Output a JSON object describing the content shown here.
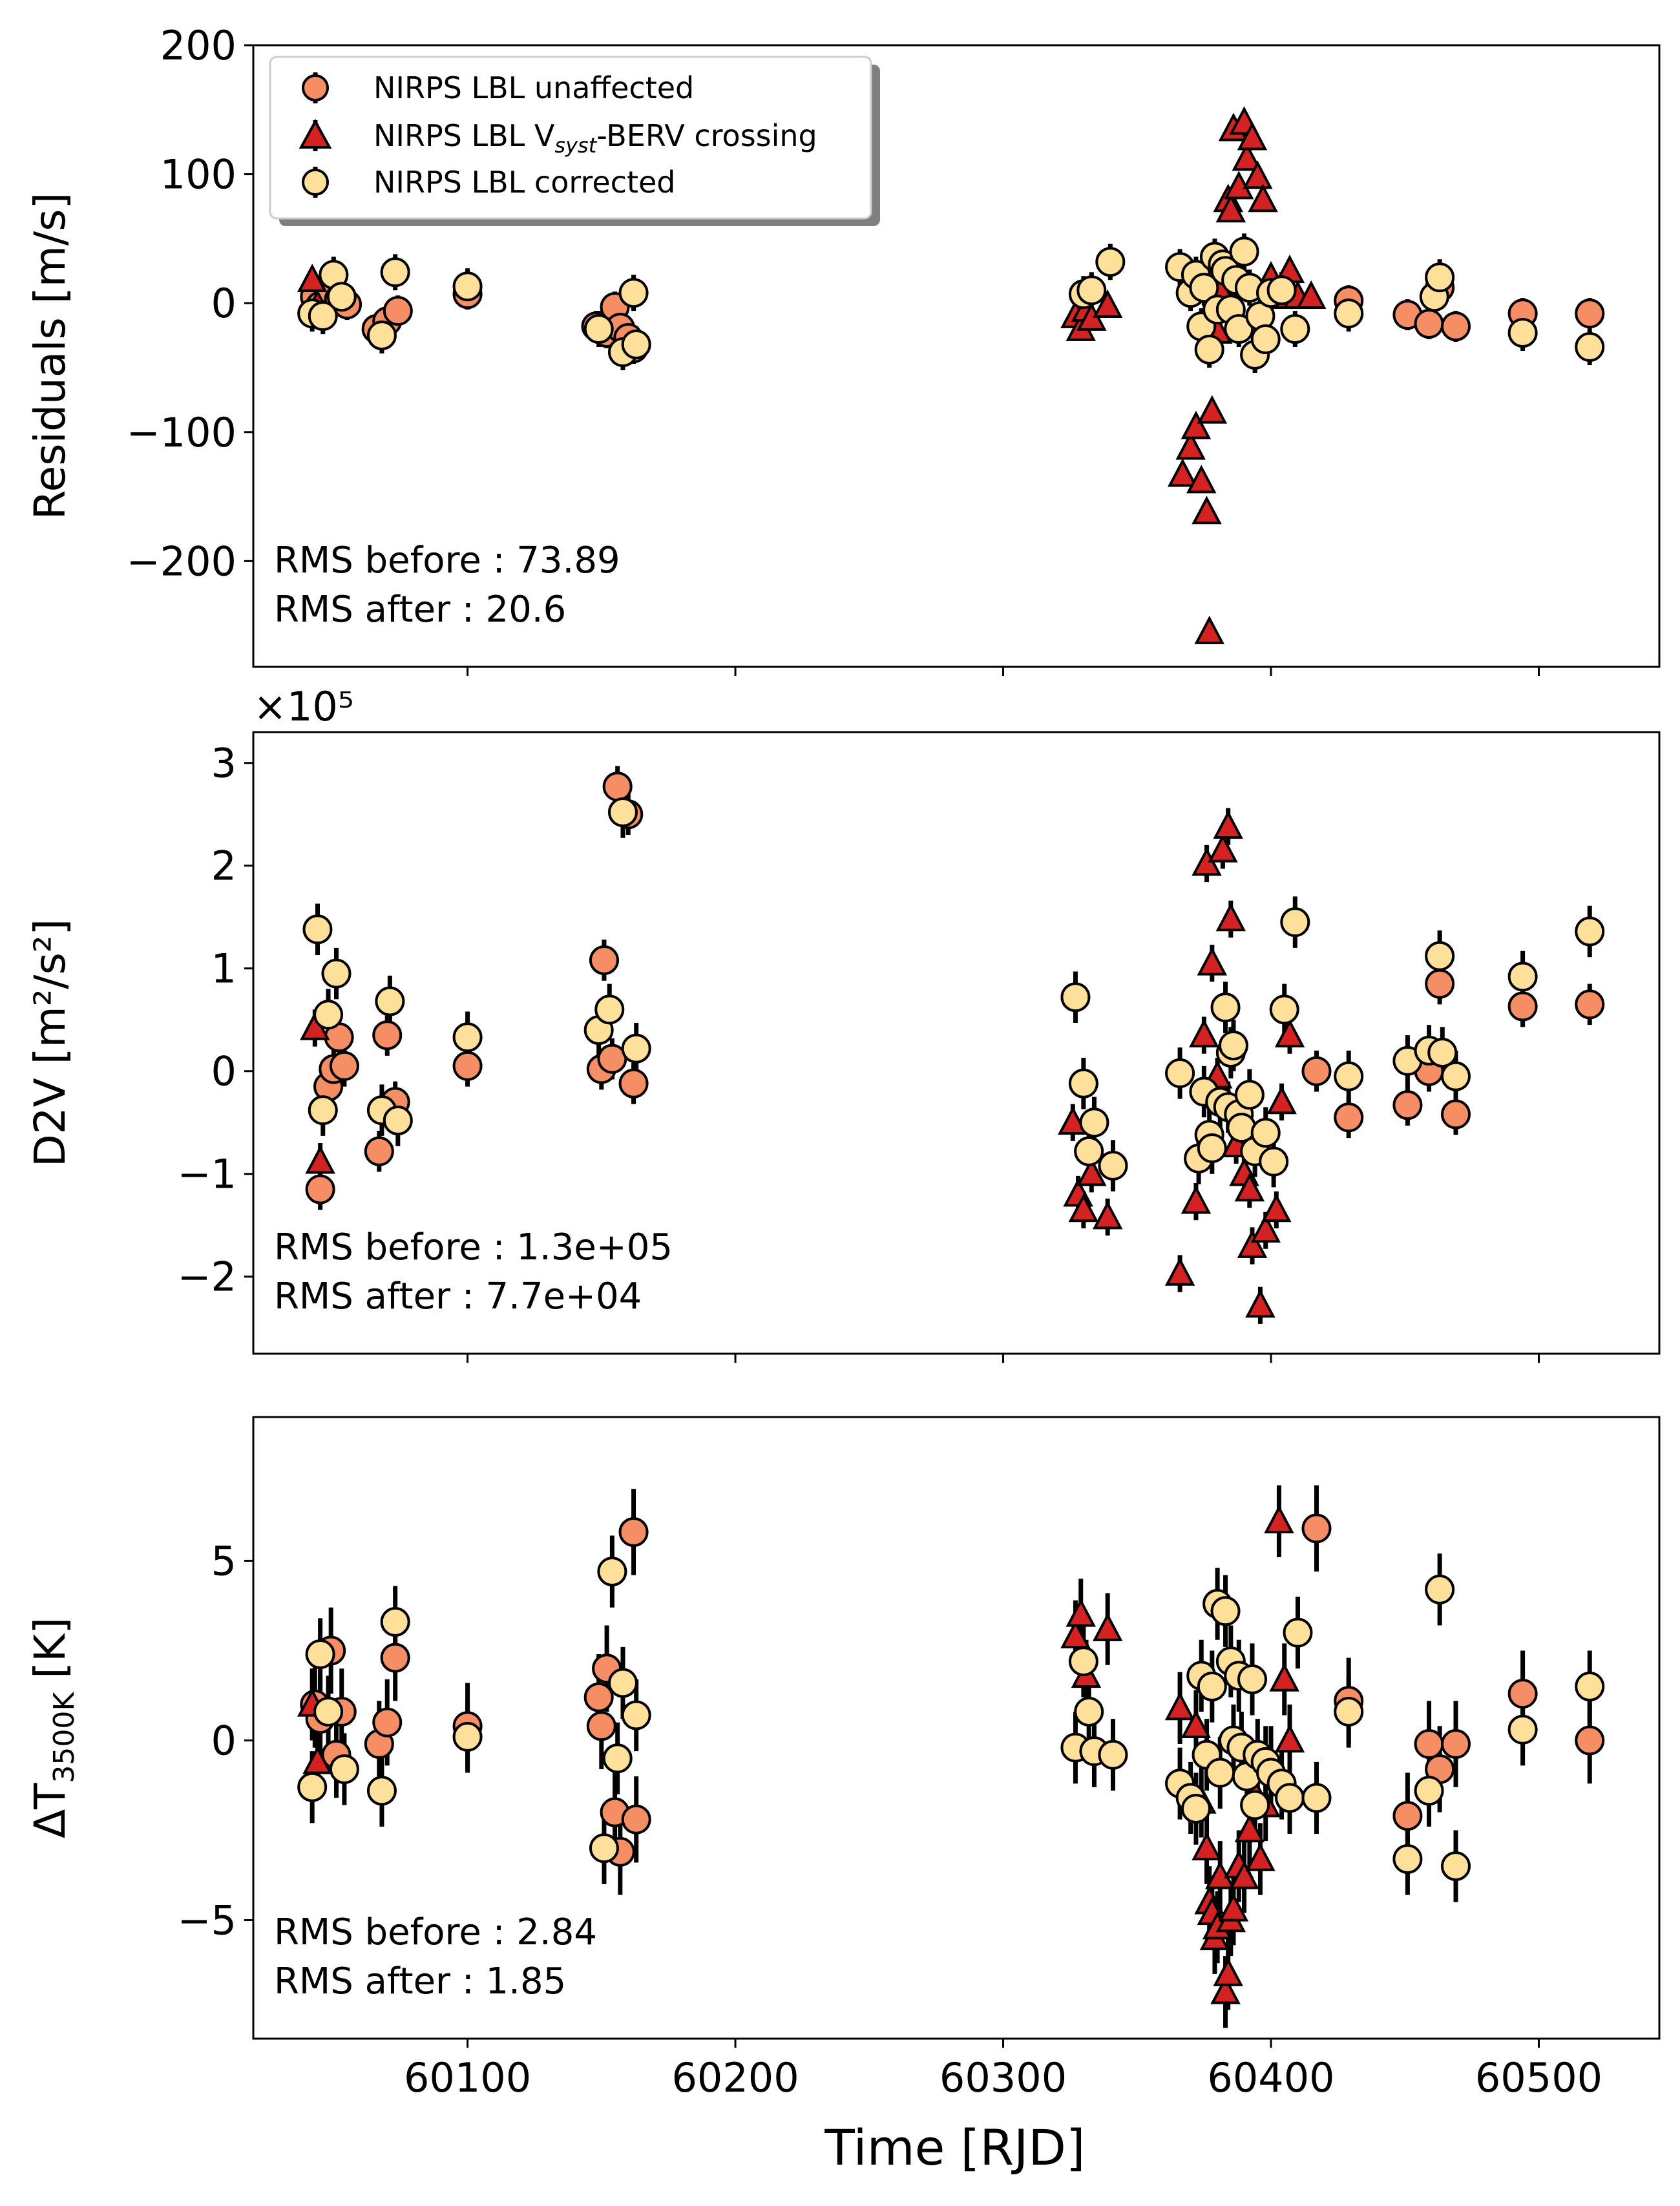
{
  "colors": {
    "unaffected": "#F68E65",
    "crossing": "#D42222",
    "corrected": "#FFE09A",
    "edge": "#000000"
  },
  "x_axis": {
    "label": "Time [RJD]",
    "range": [
      60020,
      60545
    ],
    "ticks": [
      60100,
      60200,
      60300,
      60400,
      60500
    ],
    "tick_labels": [
      "60100",
      "60200",
      "60300",
      "60400",
      "60500"
    ]
  },
  "legend": {
    "placement": "upper-left of top panel",
    "entries": [
      {
        "key": "unaffected",
        "marker": "circle",
        "label": "NIRPS LBL unaffected"
      },
      {
        "key": "crossing",
        "marker": "triangle",
        "label_prefix": "NIRPS LBL V",
        "label_sub": "syst",
        "label_suffix": "-BERV crossing"
      },
      {
        "key": "corrected",
        "marker": "circle",
        "label": "NIRPS LBL corrected"
      }
    ]
  },
  "chart_data": [
    {
      "type": "scatter",
      "ylabel": "Residuals [m/s]",
      "ylim": [
        -282,
        200
      ],
      "yticks": [
        -200,
        -100,
        0,
        100,
        200
      ],
      "ytick_labels": [
        "−200",
        "−100",
        "0",
        "100",
        "200"
      ],
      "rms_before": "RMS before : 73.89",
      "rms_after": "RMS after : 20.6",
      "series": [
        {
          "name": "NIRPS LBL unaffected",
          "key": "unaffected",
          "marker": "circle",
          "err": 12,
          "x": [
            60043,
            60045,
            60049,
            60052,
            60055,
            60066,
            60070,
            60074,
            60100,
            60148,
            60152,
            60155,
            60157,
            60160,
            60162,
            60429,
            60451,
            60459,
            60463,
            60469,
            60494,
            60519
          ],
          "y": [
            5,
            -2,
            10,
            3,
            -1,
            -20,
            -14,
            -6,
            7,
            -18,
            -23,
            -3,
            -19,
            -27,
            -35,
            2,
            -9,
            -16,
            12,
            -18,
            -8,
            -8
          ]
        },
        {
          "name": "NIRPS LBL Vsyst-BERV crossing",
          "key": "crossing",
          "marker": "triangle",
          "err": 8,
          "x": [
            60042,
            60044,
            60327,
            60329,
            60331,
            60333,
            60339,
            60367,
            60370,
            60372,
            60374,
            60376,
            60377,
            60378,
            60380,
            60381,
            60383,
            60384,
            60385,
            60386,
            60388,
            60390,
            60391,
            60393,
            60395,
            60397,
            60400,
            60403,
            60407,
            60410,
            60415
          ],
          "y": [
            18,
            -2,
            -10,
            -20,
            -5,
            -12,
            -2,
            -133,
            -112,
            -96,
            -138,
            -162,
            -255,
            -84,
            -22,
            10,
            30,
            80,
            72,
            135,
            90,
            140,
            112,
            128,
            98,
            80,
            20,
            5,
            25,
            5,
            5
          ]
        },
        {
          "name": "NIRPS LBL corrected",
          "key": "corrected",
          "marker": "circle",
          "err": 14,
          "x": [
            60042,
            60046,
            60050,
            60053,
            60068,
            60073,
            60100,
            60149,
            60158,
            60162,
            60163,
            60330,
            60333,
            60340,
            60366,
            60370,
            60372,
            60374,
            60375,
            60377,
            60379,
            60380,
            60382,
            60383,
            60385,
            60387,
            60388,
            60390,
            60392,
            60394,
            60396,
            60398,
            60400,
            60404,
            60409,
            60429,
            60461,
            60463,
            60494,
            60519
          ],
          "y": [
            -8,
            -10,
            22,
            5,
            -25,
            24,
            13,
            -20,
            -38,
            8,
            -32,
            7,
            10,
            32,
            28,
            8,
            22,
            -18,
            12,
            -36,
            36,
            -5,
            30,
            25,
            -5,
            18,
            -20,
            40,
            12,
            -40,
            -10,
            -28,
            8,
            10,
            -20,
            -8,
            5,
            20,
            -23,
            -34
          ]
        }
      ]
    },
    {
      "type": "scatter",
      "ylabel": "D2V [m²/s²]",
      "multiplier": "×10⁵",
      "ylim": [
        -2.75,
        3.3
      ],
      "yticks": [
        -2,
        -1,
        0,
        1,
        2,
        3
      ],
      "ytick_labels": [
        "−2",
        "−1",
        "0",
        "1",
        "2",
        "3"
      ],
      "rms_before": "RMS before : 1.3e+05",
      "rms_after": "RMS after : 7.7e+04",
      "series": [
        {
          "name": "NIRPS LBL unaffected",
          "key": "unaffected",
          "marker": "circle",
          "err": 0.2,
          "x": [
            60045,
            60048,
            60050,
            60052,
            60054,
            60067,
            60070,
            60073,
            60100,
            60150,
            60151,
            60154,
            60156,
            60160,
            60162,
            60417,
            60429,
            60451,
            60459,
            60463,
            60469,
            60494,
            60519
          ],
          "y": [
            -1.15,
            -0.15,
            0.02,
            0.33,
            0.05,
            -0.78,
            0.35,
            -0.3,
            0.05,
            0.02,
            1.08,
            0.12,
            2.77,
            2.5,
            -0.12,
            0.0,
            -0.45,
            -0.33,
            0.0,
            0.85,
            -0.42,
            0.63,
            0.65
          ]
        },
        {
          "name": "NIRPS LBL Vsyst-BERV crossing",
          "key": "crossing",
          "marker": "triangle",
          "err": 0.18,
          "x": [
            60043,
            60045,
            60326,
            60328,
            60330,
            60333,
            60339,
            60366,
            60372,
            60375,
            60376,
            60378,
            60380,
            60382,
            60384,
            60385,
            60387,
            60390,
            60392,
            60393,
            60396,
            60398,
            60402,
            60404,
            60407
          ],
          "y": [
            0.42,
            -0.88,
            -0.5,
            -1.2,
            -1.35,
            -1.0,
            -1.42,
            -1.97,
            -1.27,
            0.35,
            2.02,
            1.05,
            -0.05,
            2.15,
            2.38,
            1.48,
            -0.72,
            -1.0,
            -1.15,
            -1.7,
            -2.28,
            -1.55,
            -1.35,
            -0.3,
            0.35
          ]
        },
        {
          "name": "NIRPS LBL corrected",
          "key": "corrected",
          "marker": "circle",
          "err": 0.25,
          "x": [
            60044,
            60046,
            60048,
            60051,
            60068,
            60071,
            60074,
            60100,
            60149,
            60153,
            60158,
            60163,
            60327,
            60330,
            60332,
            60334,
            60341,
            60366,
            60373,
            60375,
            60377,
            60378,
            60381,
            60383,
            60384,
            60385,
            60386,
            60388,
            60389,
            60392,
            60394,
            60398,
            60401,
            60405,
            60409,
            60429,
            60451,
            60459,
            60463,
            60464,
            60469,
            60494,
            60519
          ],
          "y": [
            1.38,
            -0.38,
            0.55,
            0.95,
            -0.38,
            0.68,
            -0.48,
            0.33,
            0.4,
            0.6,
            2.52,
            0.22,
            0.72,
            -0.12,
            -0.78,
            -0.5,
            -0.92,
            -0.02,
            -0.85,
            -0.2,
            -0.62,
            -0.75,
            -0.3,
            0.62,
            -0.35,
            0.18,
            0.25,
            -0.42,
            -0.55,
            -0.23,
            -0.78,
            -0.6,
            -0.88,
            0.6,
            1.45,
            -0.05,
            0.1,
            0.2,
            1.12,
            0.18,
            -0.05,
            0.92,
            1.36
          ]
        }
      ]
    },
    {
      "type": "scatter",
      "ylabel_prefix": "ΔT",
      "ylabel_sub": "3500K",
      "ylabel_suffix": " [K]",
      "ylim": [
        -8.3,
        9.0
      ],
      "yticks": [
        -5,
        0,
        5
      ],
      "ytick_labels": [
        "−5",
        "0",
        "5"
      ],
      "rms_before": "RMS before : 2.84",
      "rms_after": "RMS after : 1.85",
      "series": [
        {
          "name": "NIRPS LBL unaffected",
          "key": "unaffected",
          "marker": "circle",
          "err": 1.2,
          "x": [
            60043,
            60045,
            60049,
            60051,
            60053,
            60067,
            60070,
            60073,
            60100,
            60149,
            60150,
            60152,
            60155,
            60157,
            60162,
            60163,
            60417,
            60429,
            60451,
            60459,
            60463,
            60469,
            60494,
            60519
          ],
          "y": [
            1.0,
            0.6,
            2.5,
            -0.4,
            0.8,
            -0.1,
            0.5,
            2.3,
            0.4,
            1.2,
            0.4,
            2.0,
            -2.0,
            -3.1,
            5.8,
            -2.2,
            5.9,
            1.1,
            -2.1,
            -0.1,
            -0.8,
            -0.1,
            1.3,
            0.0
          ]
        },
        {
          "name": "NIRPS LBL Vsyst-BERV crossing",
          "key": "crossing",
          "marker": "triangle",
          "err": 1.0,
          "x": [
            60042,
            60044,
            60327,
            60329,
            60331,
            60339,
            60366,
            60372,
            60374,
            60376,
            60377,
            60378,
            60379,
            60380,
            60381,
            60383,
            60384,
            60385,
            60386,
            60388,
            60390,
            60392,
            60394,
            60396,
            60398,
            60400,
            60403,
            60405,
            60407
          ],
          "y": [
            1.0,
            -0.6,
            2.9,
            3.5,
            1.8,
            3.1,
            0.9,
            0.4,
            -1.7,
            -3.0,
            -4.5,
            -4.8,
            -5.5,
            -5.2,
            -3.8,
            -7.0,
            -6.5,
            -5.0,
            -4.7,
            -3.5,
            -3.8,
            -2.5,
            -1.5,
            -3.3,
            -1.8,
            -0.6,
            6.1,
            1.7,
            0.0
          ]
        },
        {
          "name": "NIRPS LBL corrected",
          "key": "corrected",
          "marker": "circle",
          "err": 1.0,
          "x": [
            60042,
            60045,
            60048,
            60054,
            60068,
            60073,
            60100,
            60151,
            60154,
            60156,
            60158,
            60163,
            60327,
            60330,
            60332,
            60334,
            60341,
            60366,
            60370,
            60372,
            60374,
            60376,
            60378,
            60380,
            60381,
            60383,
            60385,
            60386,
            60388,
            60389,
            60391,
            60393,
            60394,
            60395,
            60398,
            60400,
            60404,
            60407,
            60410,
            60417,
            60429,
            60451,
            60459,
            60463,
            60469,
            60494,
            60519
          ],
          "y": [
            -1.3,
            2.4,
            0.8,
            -0.8,
            -1.4,
            3.3,
            0.1,
            -3.0,
            4.7,
            -0.5,
            1.6,
            0.7,
            -0.2,
            2.2,
            0.8,
            -0.3,
            -0.4,
            -1.2,
            -1.6,
            -1.9,
            1.8,
            -0.4,
            1.5,
            3.8,
            -0.9,
            3.6,
            2.2,
            0.0,
            1.8,
            -0.2,
            -1.0,
            1.7,
            -1.8,
            -0.4,
            -0.6,
            -0.9,
            -1.2,
            -1.6,
            3.0,
            -1.6,
            0.8,
            -3.3,
            -1.4,
            4.2,
            -3.5,
            0.3,
            1.5
          ]
        }
      ]
    }
  ]
}
